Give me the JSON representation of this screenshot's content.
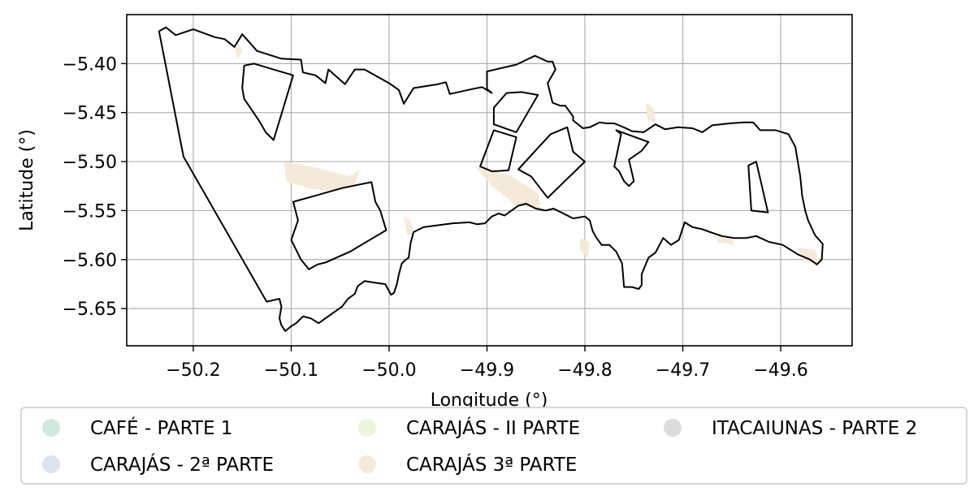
{
  "chart_data": {
    "type": "map",
    "xlabel": "Longitude (°)",
    "ylabel": "Latitude (°)",
    "xlim": [
      -50.268,
      -49.527
    ],
    "ylim": [
      -5.688,
      -5.35
    ],
    "grid": true,
    "x_ticks": [
      {
        "value": -50.2,
        "label": "−50.2"
      },
      {
        "value": -50.1,
        "label": "−50.1"
      },
      {
        "value": -50.0,
        "label": "−50.0"
      },
      {
        "value": -49.9,
        "label": "−49.9"
      },
      {
        "value": -49.8,
        "label": "−49.8"
      },
      {
        "value": -49.7,
        "label": "−49.7"
      },
      {
        "value": -49.6,
        "label": "−49.6"
      }
    ],
    "y_ticks": [
      {
        "value": -5.4,
        "label": "−5.40"
      },
      {
        "value": -5.45,
        "label": "−5.45"
      },
      {
        "value": -5.5,
        "label": "−5.50"
      },
      {
        "value": -5.55,
        "label": "−5.55"
      },
      {
        "value": -5.6,
        "label": "−5.60"
      },
      {
        "value": -5.65,
        "label": "−5.65"
      }
    ],
    "legend": {
      "placement": "below",
      "columns": 3,
      "items": [
        {
          "label": "CAFÉ - PARTE 1",
          "color": "#cfeadb"
        },
        {
          "label": "CARAJÁS - 2ª PARTE",
          "color": "#dde3f0"
        },
        {
          "label": "CARAJÁS - II PARTE",
          "color": "#e9f6da"
        },
        {
          "label": "CARAJÁS 3ª PARTE",
          "color": "#f5ead9"
        },
        {
          "label": "ITACAIUNAS - PARTE 2",
          "color": "#dcdcdc"
        }
      ]
    },
    "outline_color": "#000000",
    "fill_color": "#f5ead9",
    "outlines": [
      {
        "name": "main-boundary",
        "points": [
          [
            -50.235,
            -5.367
          ],
          [
            -50.228,
            -5.363
          ],
          [
            -50.218,
            -5.371
          ],
          [
            -50.2,
            -5.365
          ],
          [
            -50.178,
            -5.373
          ],
          [
            -50.168,
            -5.375
          ],
          [
            -50.158,
            -5.383
          ],
          [
            -50.15,
            -5.37
          ],
          [
            -50.135,
            -5.387
          ],
          [
            -50.11,
            -5.395
          ],
          [
            -50.09,
            -5.396
          ],
          [
            -50.088,
            -5.409
          ],
          [
            -50.075,
            -5.412
          ],
          [
            -50.065,
            -5.42
          ],
          [
            -50.062,
            -5.406
          ],
          [
            -50.045,
            -5.421
          ],
          [
            -50.035,
            -5.406
          ],
          [
            -50.025,
            -5.406
          ],
          [
            -50.0,
            -5.42
          ],
          [
            -49.99,
            -5.427
          ],
          [
            -49.985,
            -5.441
          ],
          [
            -49.975,
            -5.425
          ],
          [
            -49.95,
            -5.421
          ],
          [
            -49.942,
            -5.419
          ],
          [
            -49.938,
            -5.431
          ],
          [
            -49.915,
            -5.426
          ],
          [
            -49.905,
            -5.424
          ],
          [
            -49.895,
            -5.43
          ],
          [
            -49.9,
            -5.426
          ],
          [
            -49.9,
            -5.408
          ],
          [
            -49.87,
            -5.401
          ],
          [
            -49.851,
            -5.392
          ],
          [
            -49.838,
            -5.398
          ],
          [
            -49.833,
            -5.398
          ],
          [
            -49.83,
            -5.406
          ],
          [
            -49.838,
            -5.42
          ],
          [
            -49.833,
            -5.44
          ],
          [
            -49.825,
            -5.443
          ],
          [
            -49.82,
            -5.443
          ],
          [
            -49.812,
            -5.454
          ],
          [
            -49.812,
            -5.458
          ],
          [
            -49.802,
            -5.466
          ],
          [
            -49.795,
            -5.465
          ],
          [
            -49.785,
            -5.46
          ],
          [
            -49.778,
            -5.461
          ],
          [
            -49.77,
            -5.461
          ],
          [
            -49.758,
            -5.466
          ],
          [
            -49.752,
            -5.469
          ],
          [
            -49.74,
            -5.47
          ],
          [
            -49.728,
            -5.462
          ],
          [
            -49.718,
            -5.467
          ],
          [
            -49.705,
            -5.465
          ],
          [
            -49.69,
            -5.466
          ],
          [
            -49.68,
            -5.47
          ],
          [
            -49.67,
            -5.463
          ],
          [
            -49.652,
            -5.461
          ],
          [
            -49.638,
            -5.46
          ],
          [
            -49.628,
            -5.46
          ],
          [
            -49.621,
            -5.468
          ],
          [
            -49.605,
            -5.468
          ],
          [
            -49.592,
            -5.472
          ],
          [
            -49.585,
            -5.485
          ],
          [
            -49.58,
            -5.515
          ],
          [
            -49.578,
            -5.535
          ],
          [
            -49.575,
            -5.55
          ],
          [
            -49.572,
            -5.56
          ],
          [
            -49.565,
            -5.575
          ],
          [
            -49.557,
            -5.584
          ],
          [
            -49.558,
            -5.6
          ],
          [
            -49.563,
            -5.605
          ],
          [
            -49.57,
            -5.6
          ],
          [
            -49.582,
            -5.595
          ],
          [
            -49.598,
            -5.585
          ],
          [
            -49.612,
            -5.582
          ],
          [
            -49.625,
            -5.576
          ],
          [
            -49.635,
            -5.578
          ],
          [
            -49.648,
            -5.578
          ],
          [
            -49.66,
            -5.576
          ],
          [
            -49.672,
            -5.572
          ],
          [
            -49.68,
            -5.569
          ],
          [
            -49.69,
            -5.567
          ],
          [
            -49.698,
            -5.562
          ],
          [
            -49.704,
            -5.58
          ],
          [
            -49.712,
            -5.585
          ],
          [
            -49.72,
            -5.578
          ],
          [
            -49.728,
            -5.593
          ],
          [
            -49.735,
            -5.598
          ],
          [
            -49.742,
            -5.615
          ],
          [
            -49.742,
            -5.626
          ],
          [
            -49.745,
            -5.63
          ],
          [
            -49.752,
            -5.628
          ],
          [
            -49.76,
            -5.628
          ],
          [
            -49.762,
            -5.604
          ],
          [
            -49.768,
            -5.592
          ],
          [
            -49.775,
            -5.585
          ],
          [
            -49.783,
            -5.585
          ],
          [
            -49.788,
            -5.578
          ],
          [
            -49.792,
            -5.571
          ],
          [
            -49.795,
            -5.56
          ],
          [
            -49.8,
            -5.556
          ],
          [
            -49.812,
            -5.558
          ],
          [
            -49.82,
            -5.554
          ],
          [
            -49.832,
            -5.548
          ],
          [
            -49.84,
            -5.55
          ],
          [
            -49.85,
            -5.548
          ],
          [
            -49.86,
            -5.543
          ],
          [
            -49.868,
            -5.545
          ],
          [
            -49.875,
            -5.55
          ],
          [
            -49.882,
            -5.555
          ],
          [
            -49.888,
            -5.553
          ],
          [
            -49.895,
            -5.556
          ],
          [
            -49.902,
            -5.563
          ],
          [
            -49.91,
            -5.564
          ],
          [
            -49.918,
            -5.562
          ],
          [
            -49.935,
            -5.563
          ],
          [
            -49.95,
            -5.565
          ],
          [
            -49.965,
            -5.567
          ],
          [
            -49.975,
            -5.572
          ],
          [
            -49.978,
            -5.583
          ],
          [
            -49.98,
            -5.598
          ],
          [
            -49.984,
            -5.601
          ],
          [
            -49.987,
            -5.604
          ],
          [
            -49.99,
            -5.615
          ],
          [
            -49.992,
            -5.625
          ],
          [
            -49.995,
            -5.634
          ],
          [
            -49.998,
            -5.636
          ],
          [
            -50.004,
            -5.625
          ],
          [
            -50.012,
            -5.624
          ],
          [
            -50.025,
            -5.622
          ],
          [
            -50.032,
            -5.627
          ],
          [
            -50.035,
            -5.635
          ],
          [
            -50.042,
            -5.64
          ],
          [
            -50.048,
            -5.648
          ],
          [
            -50.058,
            -5.655
          ],
          [
            -50.065,
            -5.66
          ],
          [
            -50.072,
            -5.665
          ],
          [
            -50.08,
            -5.66
          ],
          [
            -50.088,
            -5.658
          ],
          [
            -50.095,
            -5.665
          ],
          [
            -50.1,
            -5.668
          ],
          [
            -50.106,
            -5.673
          ],
          [
            -50.11,
            -5.667
          ],
          [
            -50.112,
            -5.66
          ],
          [
            -50.11,
            -5.648
          ],
          [
            -50.112,
            -5.64
          ],
          [
            -50.125,
            -5.643
          ],
          [
            -50.21,
            -5.495
          ],
          [
            -50.235,
            -5.367
          ]
        ]
      },
      {
        "name": "block-1",
        "points": [
          [
            -50.148,
            -5.402
          ],
          [
            -50.138,
            -5.4
          ],
          [
            -50.098,
            -5.412
          ],
          [
            -50.118,
            -5.478
          ],
          [
            -50.126,
            -5.47
          ],
          [
            -50.133,
            -5.458
          ],
          [
            -50.148,
            -5.436
          ],
          [
            -50.15,
            -5.425
          ],
          [
            -50.148,
            -5.402
          ]
        ]
      },
      {
        "name": "block-2",
        "points": [
          [
            -50.098,
            -5.541
          ],
          [
            -50.076,
            -5.535
          ],
          [
            -50.048,
            -5.527
          ],
          [
            -50.018,
            -5.521
          ],
          [
            -50.014,
            -5.541
          ],
          [
            -50.009,
            -5.55
          ],
          [
            -50.003,
            -5.57
          ],
          [
            -50.025,
            -5.583
          ],
          [
            -50.04,
            -5.592
          ],
          [
            -50.065,
            -5.603
          ],
          [
            -50.073,
            -5.605
          ],
          [
            -50.082,
            -5.61
          ],
          [
            -50.09,
            -5.6
          ],
          [
            -50.095,
            -5.59
          ],
          [
            -50.1,
            -5.58
          ],
          [
            -50.093,
            -5.56
          ],
          [
            -50.098,
            -5.541
          ]
        ]
      },
      {
        "name": "block-3",
        "points": [
          [
            -49.865,
            -5.429
          ],
          [
            -49.848,
            -5.432
          ],
          [
            -49.87,
            -5.47
          ],
          [
            -49.893,
            -5.462
          ],
          [
            -49.893,
            -5.445
          ],
          [
            -49.88,
            -5.43
          ],
          [
            -49.865,
            -5.429
          ]
        ]
      },
      {
        "name": "block-4",
        "points": [
          [
            -49.893,
            -5.468
          ],
          [
            -49.87,
            -5.475
          ],
          [
            -49.878,
            -5.509
          ],
          [
            -49.895,
            -5.51
          ],
          [
            -49.907,
            -5.505
          ],
          [
            -49.893,
            -5.468
          ]
        ]
      },
      {
        "name": "block-5",
        "points": [
          [
            -49.818,
            -5.465
          ],
          [
            -49.835,
            -5.472
          ],
          [
            -49.858,
            -5.497
          ],
          [
            -49.868,
            -5.508
          ],
          [
            -49.855,
            -5.515
          ],
          [
            -49.838,
            -5.537
          ],
          [
            -49.8,
            -5.5
          ],
          [
            -49.812,
            -5.49
          ],
          [
            -49.818,
            -5.465
          ]
        ]
      },
      {
        "name": "block-6",
        "points": [
          [
            -49.768,
            -5.468
          ],
          [
            -49.763,
            -5.472
          ],
          [
            -49.77,
            -5.505
          ],
          [
            -49.765,
            -5.51
          ],
          [
            -49.76,
            -5.52
          ],
          [
            -49.755,
            -5.525
          ],
          [
            -49.75,
            -5.52
          ],
          [
            -49.755,
            -5.498
          ],
          [
            -49.742,
            -5.489
          ],
          [
            -49.735,
            -5.48
          ],
          [
            -49.768,
            -5.468
          ]
        ]
      },
      {
        "name": "block-7",
        "points": [
          [
            -49.633,
            -5.504
          ],
          [
            -49.625,
            -5.5
          ],
          [
            -49.618,
            -5.53
          ],
          [
            -49.613,
            -5.552
          ],
          [
            -49.63,
            -5.55
          ],
          [
            -49.633,
            -5.504
          ]
        ]
      }
    ],
    "fill_regions": [
      [
        [
          -50.107,
          -5.5
        ],
        [
          -50.08,
          -5.505
        ],
        [
          -50.04,
          -5.515
        ],
        [
          -50.03,
          -5.508
        ],
        [
          -50.035,
          -5.525
        ],
        [
          -50.05,
          -5.53
        ],
        [
          -50.08,
          -5.528
        ],
        [
          -50.105,
          -5.52
        ],
        [
          -50.107,
          -5.5
        ]
      ],
      [
        [
          -49.912,
          -5.505
        ],
        [
          -49.875,
          -5.515
        ],
        [
          -49.848,
          -5.532
        ],
        [
          -49.845,
          -5.548
        ],
        [
          -49.87,
          -5.545
        ],
        [
          -49.895,
          -5.525
        ],
        [
          -49.912,
          -5.505
        ]
      ],
      [
        [
          -49.583,
          -5.588
        ],
        [
          -49.565,
          -5.59
        ],
        [
          -49.56,
          -5.604
        ],
        [
          -49.575,
          -5.603
        ],
        [
          -49.583,
          -5.588
        ]
      ],
      [
        [
          -49.665,
          -5.575
        ],
        [
          -49.65,
          -5.578
        ],
        [
          -49.648,
          -5.585
        ],
        [
          -49.665,
          -5.582
        ],
        [
          -49.665,
          -5.575
        ]
      ],
      [
        [
          -49.738,
          -5.44
        ],
        [
          -49.73,
          -5.445
        ],
        [
          -49.728,
          -5.46
        ],
        [
          -49.736,
          -5.458
        ],
        [
          -49.738,
          -5.44
        ]
      ],
      [
        [
          -49.985,
          -5.555
        ],
        [
          -49.978,
          -5.56
        ],
        [
          -49.975,
          -5.575
        ],
        [
          -49.982,
          -5.575
        ],
        [
          -49.985,
          -5.555
        ]
      ],
      [
        [
          -50.153,
          -5.38
        ],
        [
          -50.15,
          -5.388
        ],
        [
          -50.155,
          -5.395
        ],
        [
          -50.158,
          -5.385
        ],
        [
          -50.153,
          -5.38
        ]
      ],
      [
        [
          -49.805,
          -5.578
        ],
        [
          -49.795,
          -5.582
        ],
        [
          -49.797,
          -5.598
        ],
        [
          -49.805,
          -5.59
        ],
        [
          -49.805,
          -5.578
        ]
      ]
    ]
  }
}
